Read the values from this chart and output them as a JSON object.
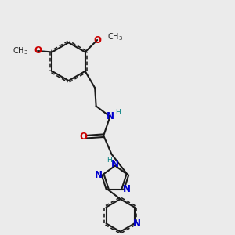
{
  "bg_color": "#ebebeb",
  "bond_color": "#1a1a1a",
  "N_color": "#0000cd",
  "O_color": "#cc0000",
  "H_color": "#008080",
  "bond_width": 1.5,
  "figsize": [
    3.0,
    3.0
  ],
  "dpi": 100,
  "xlim": [
    0,
    10
  ],
  "ylim": [
    0,
    10
  ]
}
